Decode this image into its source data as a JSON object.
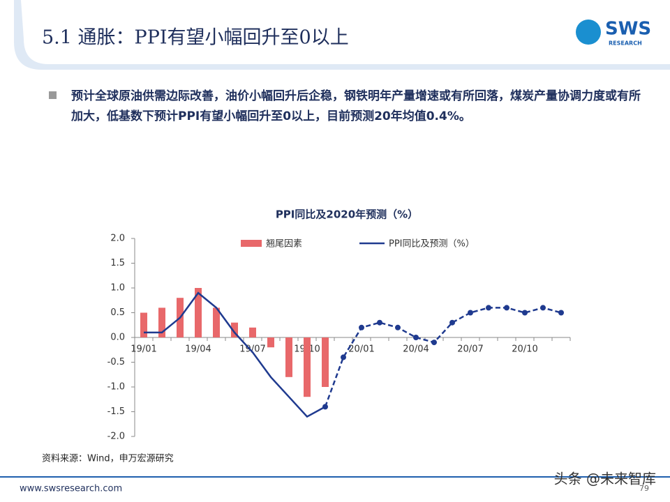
{
  "header": {
    "title": "5.1 通胀：PPI有望小幅回升至0以上",
    "logo": "SWS",
    "logo_sub": "RESEARCH"
  },
  "bullet": "预计全球原油供需边际改善，油价小幅回升后企稳，钢铁明年产量增速或有所回落，煤炭产量协调力度或有所加大，低基数下预计PPI有望小幅回升至0以上，目前预测20年均值0.4%。",
  "chart_data": {
    "type": "bar_line",
    "title": "PPI同比及2020年预测（%）",
    "categories": [
      "19/01",
      null,
      null,
      "19/04",
      null,
      null,
      "19/07",
      null,
      null,
      "19/10",
      null,
      null,
      "20/01",
      null,
      null,
      "20/04",
      null,
      null,
      "20/07",
      null,
      null,
      "20/10",
      null,
      null
    ],
    "series": [
      {
        "name": "翘尾因素",
        "type": "bar",
        "color": "#e8686a",
        "values": [
          0.5,
          0.6,
          0.8,
          1.0,
          0.6,
          0.3,
          0.2,
          -0.2,
          -0.8,
          -1.2,
          -1.0,
          null,
          null,
          null,
          null,
          null,
          null,
          null,
          null,
          null,
          null,
          null,
          null,
          null
        ]
      },
      {
        "name": "PPI同比及预测（%）",
        "type": "line",
        "color": "#1f3a8f",
        "dashed_from_index": 10,
        "values": [
          0.1,
          0.1,
          0.4,
          0.9,
          0.6,
          0.1,
          -0.3,
          -0.8,
          -1.2,
          -1.6,
          -1.4,
          -0.4,
          0.2,
          0.3,
          0.2,
          0.0,
          -0.1,
          0.3,
          0.5,
          0.6,
          0.6,
          0.5,
          0.6,
          0.5
        ]
      }
    ],
    "ylim": [
      -2.0,
      2.0
    ],
    "yticks": [
      {
        "value": -2.0,
        "label": "-2.0"
      },
      -1.5,
      {
        "value": -1.0,
        "label": "-1.0"
      },
      -0.5,
      {
        "value": 0.0,
        "label": "0.0"
      },
      0.5,
      {
        "value": 1.0,
        "label": "1.0"
      },
      1.5,
      {
        "value": 2.0,
        "label": "2.0"
      }
    ],
    "legend": "top"
  },
  "source": "资料来源：Wind，申万宏源研究",
  "footer": {
    "url": "www.swsresearch.com",
    "page": "79",
    "watermark": "头条 @未来智库"
  }
}
